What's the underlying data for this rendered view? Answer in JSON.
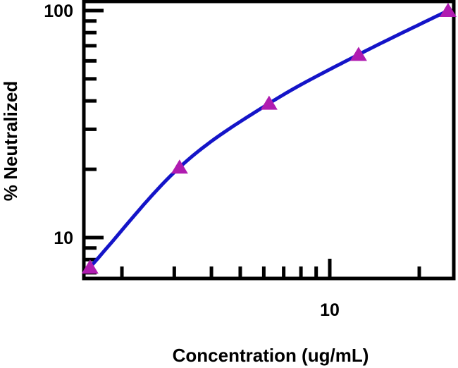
{
  "chart_data": {
    "type": "line",
    "title": "",
    "xlabel": "Concentration (ug/mL)",
    "ylabel": "% Neutralized",
    "xscale": "log",
    "yscale": "log",
    "xlim": [
      1.49,
      26.3
    ],
    "ylim": [
      6.6,
      110
    ],
    "x_tick_labels": [
      {
        "value": 10,
        "label": "10"
      }
    ],
    "y_tick_labels": [
      {
        "value": 10,
        "label": "10"
      },
      {
        "value": 100,
        "label": "100"
      }
    ],
    "x_minor_ticks": [
      2,
      3,
      4,
      5,
      6,
      7,
      8,
      9,
      20
    ],
    "y_minor_ticks": [
      7,
      8,
      9,
      20,
      30,
      40,
      50,
      60,
      70,
      80,
      90
    ],
    "grid": false,
    "legend": null,
    "series": [
      {
        "name": "% Neutralized",
        "marker": "triangle",
        "marker_color": "#b01cb0",
        "line_color": "#1414c8",
        "x": [
          1.5625,
          3.125,
          6.25,
          12.5,
          25
        ],
        "y": [
          7.4,
          20.4,
          39,
          64,
          100
        ]
      }
    ]
  },
  "colors": {
    "axis": "#000000",
    "line": "#1414c8",
    "marker": "#b01cb0",
    "background": "#ffffff"
  }
}
